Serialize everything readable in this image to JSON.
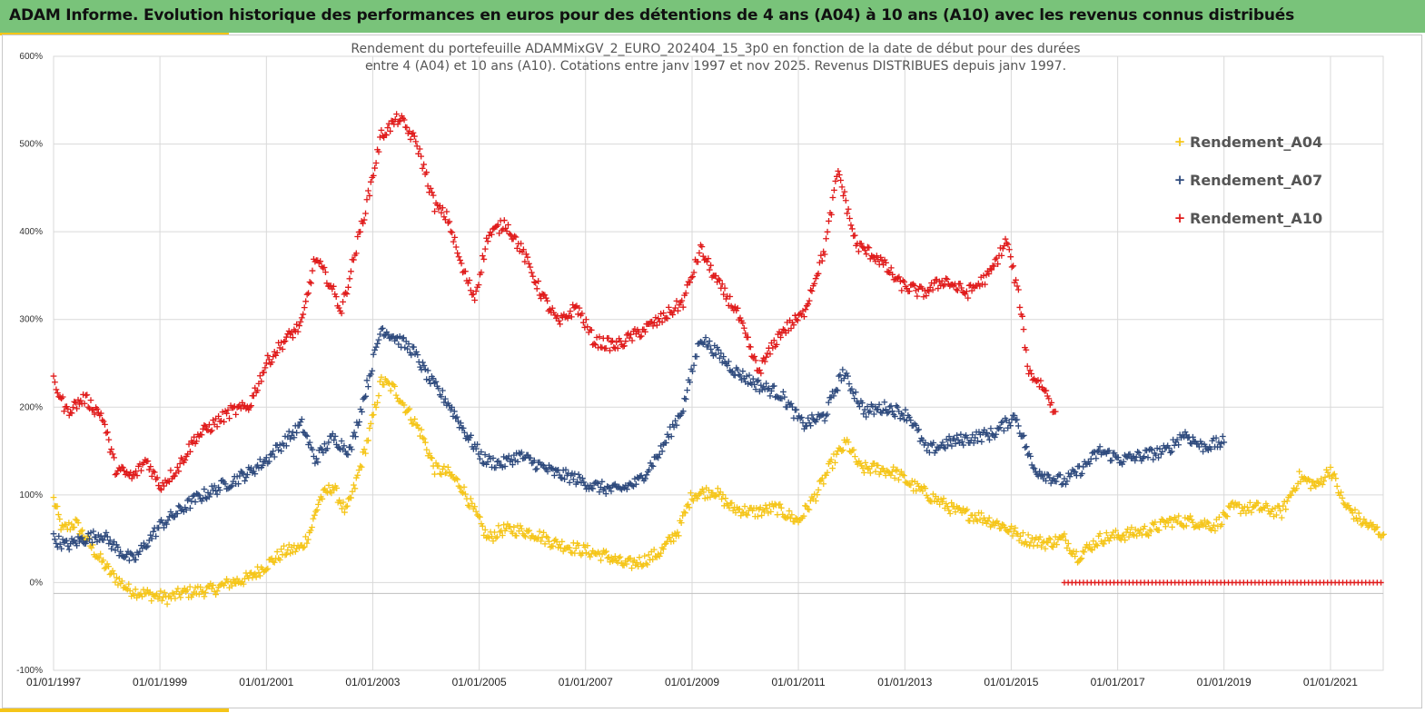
{
  "header": {
    "title": "ADAM Informe. Evolution historique des performances en euros pour des détentions de 4 ans (A04) à 10 ans (A10) avec les revenus connus distribués"
  },
  "colors": {
    "header_bg": "#79c37a",
    "accent": "#f5c518",
    "A04": "#f5c518",
    "A07": "#2e4a7d",
    "A10": "#e01a1a"
  },
  "chart_data": {
    "type": "scatter",
    "title_lines": [
      "Rendement du portefeuille ADAMMixGV_2_EURO_202404_15_3p0 en fonction de la date de début pour des durées",
      "entre 4 (A04) et 10 ans (A10). Cotations entre janv 1997 et nov 2025. Revenus DISTRIBUES depuis janv 1997."
    ],
    "marker": "+",
    "xlabel": "",
    "ylabel": "",
    "x_range": [
      "1997-01-01",
      "2022-01-01"
    ],
    "y_range_pct": [
      -100,
      600
    ],
    "grid": true,
    "legend_position": "top-right",
    "y_ticks": [
      "600%",
      "500%",
      "400%",
      "300%",
      "200%",
      "100%",
      "0%",
      "-100%"
    ],
    "x_ticks": [
      "01/01/1997",
      "01/01/1999",
      "01/01/2001",
      "01/01/2003",
      "01/01/2005",
      "01/01/2007",
      "01/01/2009",
      "01/01/2011",
      "01/01/2013",
      "01/01/2015",
      "01/01/2017",
      "01/01/2019",
      "01/01/2021"
    ],
    "series": [
      {
        "name": "Rendement_A04",
        "color": "#f5c518",
        "points": [
          [
            "1997-01-01",
            95
          ],
          [
            "1997-03-01",
            60
          ],
          [
            "1997-06-01",
            68
          ],
          [
            "1997-09-01",
            45
          ],
          [
            "1997-11-01",
            30
          ],
          [
            "1998-02-01",
            10
          ],
          [
            "1998-06-01",
            -8
          ],
          [
            "1998-09-01",
            -12
          ],
          [
            "1998-12-01",
            -15
          ],
          [
            "1999-03-01",
            -18
          ],
          [
            "1999-06-01",
            -12
          ],
          [
            "1999-09-01",
            -10
          ],
          [
            "2000-01-01",
            -8
          ],
          [
            "2000-05-01",
            0
          ],
          [
            "2000-09-01",
            5
          ],
          [
            "2001-01-01",
            20
          ],
          [
            "2001-05-01",
            35
          ],
          [
            "2001-09-01",
            40
          ],
          [
            "2001-11-01",
            60
          ],
          [
            "2002-01-01",
            95
          ],
          [
            "2002-04-01",
            110
          ],
          [
            "2002-07-01",
            80
          ],
          [
            "2002-09-01",
            110
          ],
          [
            "2002-12-01",
            165
          ],
          [
            "2003-03-01",
            230
          ],
          [
            "2003-06-01",
            220
          ],
          [
            "2003-09-01",
            195
          ],
          [
            "2003-12-01",
            170
          ],
          [
            "2004-03-01",
            130
          ],
          [
            "2004-06-01",
            125
          ],
          [
            "2004-09-01",
            110
          ],
          [
            "2004-12-01",
            80
          ],
          [
            "2005-03-01",
            50
          ],
          [
            "2005-06-01",
            60
          ],
          [
            "2005-10-01",
            60
          ],
          [
            "2006-02-01",
            55
          ],
          [
            "2006-06-01",
            45
          ],
          [
            "2006-10-01",
            40
          ],
          [
            "2007-02-01",
            35
          ],
          [
            "2007-06-01",
            30
          ],
          [
            "2007-10-01",
            20
          ],
          [
            "2008-02-01",
            25
          ],
          [
            "2008-06-01",
            35
          ],
          [
            "2008-10-01",
            60
          ],
          [
            "2009-01-01",
            100
          ],
          [
            "2009-06-01",
            105
          ],
          [
            "2009-10-01",
            85
          ],
          [
            "2010-03-01",
            80
          ],
          [
            "2010-08-01",
            85
          ],
          [
            "2011-01-01",
            70
          ],
          [
            "2011-05-01",
            100
          ],
          [
            "2011-09-01",
            140
          ],
          [
            "2011-12-01",
            160
          ],
          [
            "2012-03-01",
            130
          ],
          [
            "2012-07-01",
            130
          ],
          [
            "2012-11-01",
            125
          ],
          [
            "2013-03-01",
            110
          ],
          [
            "2013-08-01",
            95
          ],
          [
            "2014-01-01",
            80
          ],
          [
            "2014-06-01",
            75
          ],
          [
            "2014-11-01",
            65
          ],
          [
            "2015-04-01",
            50
          ],
          [
            "2015-09-01",
            45
          ],
          [
            "2016-01-01",
            50
          ],
          [
            "2016-04-01",
            30
          ],
          [
            "2016-09-01",
            50
          ],
          [
            "2017-03-01",
            55
          ],
          [
            "2017-08-01",
            60
          ],
          [
            "2018-01-01",
            70
          ],
          [
            "2018-06-01",
            70
          ],
          [
            "2018-11-01",
            65
          ],
          [
            "2019-03-01",
            85
          ],
          [
            "2019-09-01",
            85
          ],
          [
            "2020-02-01",
            80
          ],
          [
            "2020-06-01",
            120
          ],
          [
            "2020-10-01",
            110
          ],
          [
            "2021-01-01",
            130
          ],
          [
            "2021-04-01",
            90
          ],
          [
            "2021-08-01",
            70
          ],
          [
            "2022-01-01",
            55
          ]
        ]
      },
      {
        "name": "Rendement_A07",
        "color": "#2e4a7d",
        "points": [
          [
            "1997-01-01",
            50
          ],
          [
            "1997-04-01",
            42
          ],
          [
            "1997-08-01",
            50
          ],
          [
            "1997-12-01",
            55
          ],
          [
            "1998-03-01",
            40
          ],
          [
            "1998-07-01",
            25
          ],
          [
            "1998-10-01",
            45
          ],
          [
            "1999-01-01",
            65
          ],
          [
            "1999-05-01",
            80
          ],
          [
            "1999-09-01",
            95
          ],
          [
            "2000-01-01",
            105
          ],
          [
            "2000-05-01",
            115
          ],
          [
            "2000-09-01",
            125
          ],
          [
            "2001-01-01",
            140
          ],
          [
            "2001-05-01",
            160
          ],
          [
            "2001-09-01",
            180
          ],
          [
            "2001-12-01",
            140
          ],
          [
            "2002-04-01",
            165
          ],
          [
            "2002-08-01",
            150
          ],
          [
            "2002-12-01",
            230
          ],
          [
            "2003-03-01",
            290
          ],
          [
            "2003-06-01",
            280
          ],
          [
            "2003-10-01",
            265
          ],
          [
            "2004-02-01",
            230
          ],
          [
            "2004-06-01",
            205
          ],
          [
            "2004-10-01",
            170
          ],
          [
            "2005-02-01",
            140
          ],
          [
            "2005-06-01",
            135
          ],
          [
            "2005-10-01",
            145
          ],
          [
            "2006-02-01",
            135
          ],
          [
            "2006-06-01",
            125
          ],
          [
            "2006-10-01",
            120
          ],
          [
            "2007-03-01",
            110
          ],
          [
            "2007-08-01",
            105
          ],
          [
            "2008-01-01",
            115
          ],
          [
            "2008-06-01",
            150
          ],
          [
            "2008-11-01",
            200
          ],
          [
            "2009-03-01",
            280
          ],
          [
            "2009-07-01",
            260
          ],
          [
            "2009-11-01",
            240
          ],
          [
            "2010-04-01",
            225
          ],
          [
            "2010-09-01",
            215
          ],
          [
            "2011-02-01",
            180
          ],
          [
            "2011-07-01",
            190
          ],
          [
            "2011-11-01",
            240
          ],
          [
            "2012-04-01",
            195
          ],
          [
            "2012-09-01",
            200
          ],
          [
            "2013-02-01",
            190
          ],
          [
            "2013-06-01",
            150
          ],
          [
            "2013-11-01",
            160
          ],
          [
            "2014-04-01",
            165
          ],
          [
            "2014-09-01",
            170
          ],
          [
            "2015-02-01",
            190
          ],
          [
            "2015-06-01",
            130
          ],
          [
            "2015-10-01",
            120
          ],
          [
            "2016-01-01",
            115
          ],
          [
            "2016-05-01",
            130
          ],
          [
            "2016-09-01",
            150
          ],
          [
            "2017-02-01",
            140
          ],
          [
            "2017-07-01",
            145
          ],
          [
            "2017-12-01",
            150
          ],
          [
            "2018-04-01",
            170
          ],
          [
            "2018-08-01",
            155
          ],
          [
            "2019-01-01",
            160
          ]
        ]
      },
      {
        "name": "Rendement_A10",
        "color": "#e01a1a",
        "points": [
          [
            "1997-01-01",
            230
          ],
          [
            "1997-04-01",
            195
          ],
          [
            "1997-08-01",
            210
          ],
          [
            "1997-12-01",
            190
          ],
          [
            "1998-03-01",
            130
          ],
          [
            "1998-07-01",
            120
          ],
          [
            "1998-10-01",
            140
          ],
          [
            "1999-01-01",
            110
          ],
          [
            "1999-05-01",
            130
          ],
          [
            "1999-09-01",
            165
          ],
          [
            "2000-01-01",
            180
          ],
          [
            "2000-05-01",
            195
          ],
          [
            "2000-09-01",
            200
          ],
          [
            "2001-01-01",
            250
          ],
          [
            "2001-05-01",
            275
          ],
          [
            "2001-09-01",
            295
          ],
          [
            "2001-12-01",
            370
          ],
          [
            "2002-03-01",
            345
          ],
          [
            "2002-06-01",
            310
          ],
          [
            "2002-09-01",
            375
          ],
          [
            "2002-12-01",
            440
          ],
          [
            "2003-03-01",
            510
          ],
          [
            "2003-07-01",
            530
          ],
          [
            "2003-11-01",
            500
          ],
          [
            "2004-03-01",
            430
          ],
          [
            "2004-06-01",
            415
          ],
          [
            "2004-09-01",
            360
          ],
          [
            "2004-12-01",
            325
          ],
          [
            "2005-03-01",
            395
          ],
          [
            "2005-07-01",
            410
          ],
          [
            "2005-11-01",
            375
          ],
          [
            "2006-03-01",
            330
          ],
          [
            "2006-07-01",
            295
          ],
          [
            "2006-11-01",
            315
          ],
          [
            "2007-03-01",
            275
          ],
          [
            "2007-08-01",
            270
          ],
          [
            "2008-01-01",
            285
          ],
          [
            "2008-06-01",
            300
          ],
          [
            "2008-11-01",
            320
          ],
          [
            "2009-03-01",
            380
          ],
          [
            "2009-07-01",
            340
          ],
          [
            "2009-11-01",
            310
          ],
          [
            "2010-04-01",
            240
          ],
          [
            "2010-09-01",
            285
          ],
          [
            "2011-02-01",
            305
          ],
          [
            "2011-07-01",
            380
          ],
          [
            "2011-10-01",
            470
          ],
          [
            "2012-02-01",
            385
          ],
          [
            "2012-07-01",
            370
          ],
          [
            "2012-12-01",
            340
          ],
          [
            "2013-05-01",
            330
          ],
          [
            "2013-10-01",
            345
          ],
          [
            "2014-03-01",
            330
          ],
          [
            "2014-08-01",
            350
          ],
          [
            "2014-12-01",
            390
          ],
          [
            "2015-03-01",
            320
          ],
          [
            "2015-05-01",
            240
          ],
          [
            "2015-08-01",
            225
          ],
          [
            "2015-11-01",
            195
          ]
        ]
      },
      {
        "name": "",
        "color": "#e01a1a",
        "note_segment": "flat",
        "points": [
          [
            "2016-01-01",
            0
          ],
          [
            "2022-01-01",
            0
          ]
        ]
      }
    ]
  },
  "legend": {
    "items": [
      {
        "label": "Rendement_A04",
        "color": "#f5c518"
      },
      {
        "label": "Rendement_A07",
        "color": "#2e4a7d"
      },
      {
        "label": "Rendement_A10",
        "color": "#e01a1a"
      }
    ]
  }
}
